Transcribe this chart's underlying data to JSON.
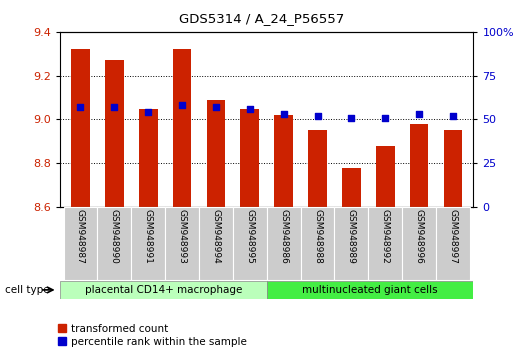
{
  "title": "GDS5314 / A_24_P56557",
  "samples": [
    "GSM948987",
    "GSM948990",
    "GSM948991",
    "GSM948993",
    "GSM948994",
    "GSM948995",
    "GSM948986",
    "GSM948988",
    "GSM948989",
    "GSM948992",
    "GSM948996",
    "GSM948997"
  ],
  "transformed_count": [
    9.32,
    9.27,
    9.05,
    9.32,
    9.09,
    9.05,
    9.02,
    8.95,
    8.78,
    8.88,
    8.98,
    8.95
  ],
  "percentile_rank": [
    57,
    57,
    54,
    58,
    57,
    56,
    53,
    52,
    51,
    51,
    53,
    52
  ],
  "group1_label": "placental CD14+ macrophage",
  "group2_label": "multinucleated giant cells",
  "group1_count": 6,
  "group2_count": 6,
  "ylim_left": [
    8.6,
    9.4
  ],
  "ylim_right": [
    0,
    100
  ],
  "yticks_left": [
    8.6,
    8.8,
    9.0,
    9.2,
    9.4
  ],
  "yticks_right": [
    0,
    25,
    50,
    75,
    100
  ],
  "ytick_labels_right": [
    "0",
    "25",
    "50",
    "75",
    "100%"
  ],
  "bar_color": "#cc2200",
  "dot_color": "#0000cc",
  "bar_bottom": 8.6,
  "legend_red_label": "transformed count",
  "legend_blue_label": "percentile rank within the sample",
  "group1_color": "#bbffbb",
  "group2_color": "#44ee44",
  "xlabel_area_color": "#cccccc",
  "cell_type_label": "cell type",
  "fig_width": 5.23,
  "fig_height": 3.54,
  "dpi": 100
}
